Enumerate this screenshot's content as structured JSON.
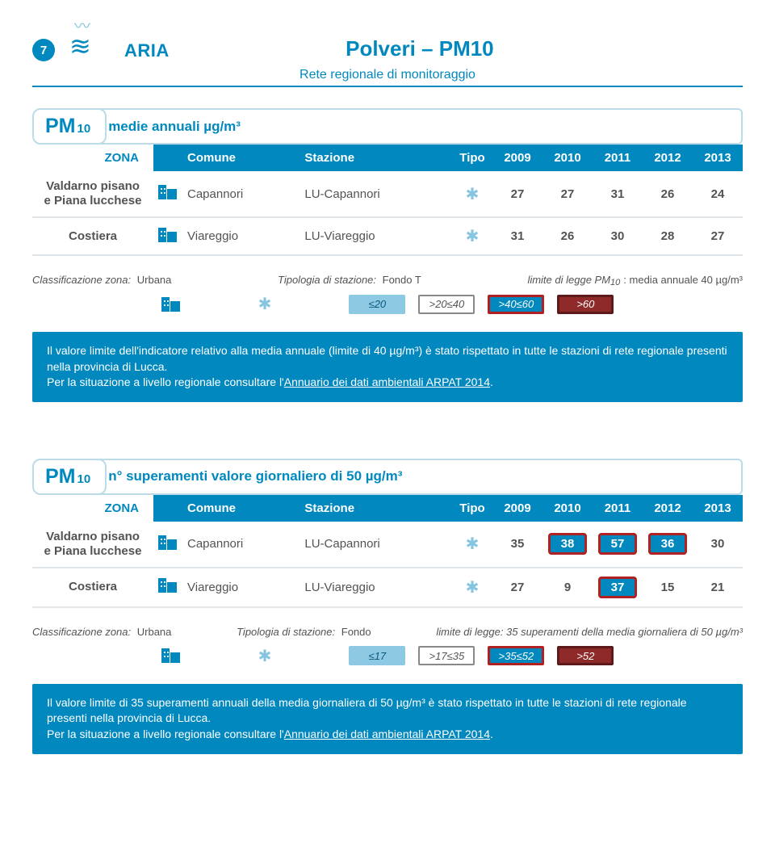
{
  "page_number": "7",
  "section": "ARIA",
  "title": "Polveri – PM10",
  "subtitle": "Rete regionale di monitoraggio",
  "colors": {
    "primary": "#0088bf",
    "primary_light": "#86c5e0",
    "red_border": "#b02222",
    "red_fill": "#8f2a2a",
    "grey_text": "#535353",
    "row_border": "#e0e6e9",
    "pill_border": "#bcdbe9"
  },
  "table1": {
    "measure_label": "PM",
    "measure_sub": "10",
    "measure_subtitle": "medie annuali µg/m³",
    "headers": {
      "zona": "ZONA",
      "comune": "Comune",
      "stazione": "Stazione",
      "tipo": "Tipo"
    },
    "years": [
      "2009",
      "2010",
      "2011",
      "2012",
      "2013"
    ],
    "rows": [
      {
        "zona": "Valdarno pisano\ne Piana lucchese",
        "comune": "Capannori",
        "stazione": "LU-Capannori",
        "values": [
          "27",
          "27",
          "31",
          "26",
          "24"
        ],
        "boxed": [
          false,
          false,
          false,
          false,
          false
        ]
      },
      {
        "zona": "Costiera",
        "comune": "Viareggio",
        "stazione": "LU-Viareggio",
        "values": [
          "31",
          "26",
          "30",
          "28",
          "27"
        ],
        "boxed": [
          false,
          false,
          false,
          false,
          false
        ]
      }
    ],
    "meta": {
      "class_label": "Classificazione zona:",
      "class_value": "Urbana",
      "tipo_label": "Tipologia di stazione:",
      "tipo_value": "Fondo   T",
      "limit_label": "limite di legge PM",
      "limit_sub": "10",
      "limit_rest": ": media annuale 40 µg/m³"
    },
    "legend": [
      "≤20",
      ">20≤40",
      ">40≤60",
      ">60"
    ],
    "summary": {
      "line1": "Il valore limite dell'indicatore relativo alla media annuale (limite di 40 µg/m³) è stato rispettato in tutte le stazioni di rete regionale presenti nella provincia di Lucca.",
      "line2_a": "Per la situazione a livello regionale consultare l'",
      "link": "Annuario dei dati ambientali ARPAT 2014",
      "line2_b": "."
    }
  },
  "table2": {
    "measure_label": "PM",
    "measure_sub": "10",
    "measure_subtitle": "n° superamenti valore giornaliero di 50 µg/m³",
    "headers": {
      "zona": "ZONA",
      "comune": "Comune",
      "stazione": "Stazione",
      "tipo": "Tipo"
    },
    "years": [
      "2009",
      "2010",
      "2011",
      "2012",
      "2013"
    ],
    "rows": [
      {
        "zona": "Valdarno pisano\ne Piana lucchese",
        "comune": "Capannori",
        "stazione": "LU-Capannori",
        "values": [
          "35",
          "38",
          "57",
          "36",
          "30"
        ],
        "boxed": [
          false,
          true,
          true,
          true,
          false
        ],
        "boxed_bg": [
          null,
          "#0088bf",
          "#0088bf",
          "#0088bf",
          null
        ]
      },
      {
        "zona": "Costiera",
        "comune": "Viareggio",
        "stazione": "LU-Viareggio",
        "values": [
          "27",
          "9",
          "37",
          "15",
          "21"
        ],
        "boxed": [
          false,
          false,
          true,
          false,
          false
        ],
        "boxed_bg": [
          null,
          null,
          "#0088bf",
          null,
          null
        ]
      }
    ],
    "meta": {
      "class_label": "Classificazione zona:",
      "class_value": "Urbana",
      "tipo_label": "Tipologia di stazione:",
      "tipo_value": "Fondo",
      "limit_text": "limite di legge: 35 superamenti della media giornaliera di 50 µg/m³"
    },
    "legend": [
      "≤17",
      ">17≤35",
      ">35≤52",
      ">52"
    ],
    "summary": {
      "line1": "Il valore limite di 35 superamenti annuali della media giornaliera di 50 µg/m³ è stato rispettato in tutte le stazioni di rete regionale presenti nella provincia di Lucca.",
      "line2_a": "Per la situazione a livello regionale consultare l'",
      "link": "Annuario dei dati ambientali ARPAT 2014",
      "line2_b": "."
    }
  }
}
